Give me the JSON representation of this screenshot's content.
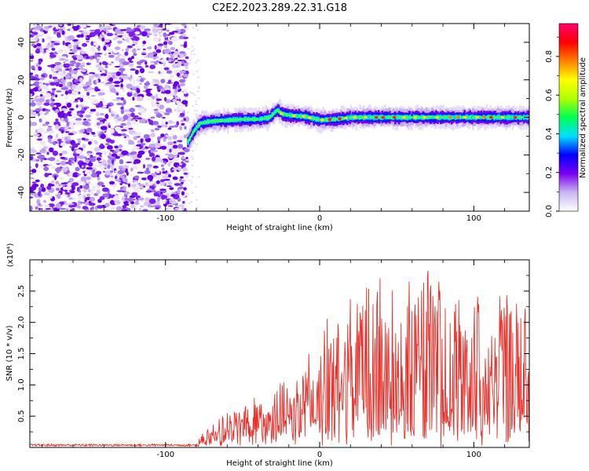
{
  "title": "C2E2.2023.289.22.31.G18",
  "chart_data": [
    {
      "type": "heatmap",
      "xlabel": "Height of straight line (km)",
      "ylabel": "Frequency (Hz)",
      "xlim": [
        -188,
        136
      ],
      "ylim": [
        -50,
        50
      ],
      "xticks": [
        -100,
        0,
        100
      ],
      "yticks": [
        -40,
        -20,
        0,
        20,
        40
      ],
      "noise_region_x": [
        -188,
        -86
      ],
      "ridge": [
        {
          "x": -86,
          "y": -13
        },
        {
          "x": -82,
          "y": -7
        },
        {
          "x": -78,
          "y": -3
        },
        {
          "x": -70,
          "y": -2
        },
        {
          "x": -60,
          "y": -1.5
        },
        {
          "x": -50,
          "y": -1
        },
        {
          "x": -40,
          "y": -1
        },
        {
          "x": -33,
          "y": 0
        },
        {
          "x": -28,
          "y": 4
        },
        {
          "x": -25,
          "y": 2
        },
        {
          "x": -20,
          "y": 1
        },
        {
          "x": -10,
          "y": 0.5
        },
        {
          "x": 0,
          "y": -1.5
        },
        {
          "x": 10,
          "y": -1
        },
        {
          "x": 20,
          "y": 0
        },
        {
          "x": 40,
          "y": 0
        },
        {
          "x": 60,
          "y": 0
        },
        {
          "x": 80,
          "y": 0
        },
        {
          "x": 100,
          "y": 0
        },
        {
          "x": 120,
          "y": 0
        },
        {
          "x": 136,
          "y": 0
        }
      ],
      "colorbar": {
        "label": "Normalized spectral amplitude",
        "range": [
          0,
          0.97
        ],
        "ticks": [
          0.0,
          0.2,
          0.4,
          0.6,
          0.8
        ],
        "tick_labels": [
          "0.0",
          "0.2",
          "0.4",
          "0.6",
          "0.8"
        ],
        "colors": [
          "#ffffff",
          "#c9b6f2",
          "#7a00f0",
          "#0000ff",
          "#00e0ff",
          "#00ff50",
          "#b0ff00",
          "#ffff00",
          "#ff8000",
          "#ff0000",
          "#ff0070"
        ]
      }
    },
    {
      "type": "line",
      "xlabel": "Height of straight line (km)",
      "ylabel": "SNR (10 * v/v)",
      "y_multiplier_label": "(x10⁴)",
      "xlim": [
        -188,
        136
      ],
      "ylim": [
        0,
        3.0
      ],
      "xticks": [
        -100,
        0,
        100
      ],
      "yticks": [
        0.5,
        1.0,
        1.5,
        2.0,
        2.5
      ],
      "ytick_labels": [
        "0.5",
        "1.0",
        "1.5",
        "2.0",
        "2.5"
      ],
      "line_color": "#e8302a",
      "envelope": [
        {
          "x": -188,
          "y": 0.05
        },
        {
          "x": -90,
          "y": 0.05
        },
        {
          "x": -80,
          "y": 0.08
        },
        {
          "x": -76,
          "y": 0.2
        },
        {
          "x": -70,
          "y": 0.35
        },
        {
          "x": -60,
          "y": 0.55
        },
        {
          "x": -50,
          "y": 0.75
        },
        {
          "x": -40,
          "y": 0.95
        },
        {
          "x": -30,
          "y": 0.9
        },
        {
          "x": -20,
          "y": 1.0
        },
        {
          "x": -10,
          "y": 1.3
        },
        {
          "x": 0,
          "y": 2.0
        },
        {
          "x": 10,
          "y": 1.9
        },
        {
          "x": 20,
          "y": 2.4
        },
        {
          "x": 30,
          "y": 2.6
        },
        {
          "x": 40,
          "y": 2.7
        },
        {
          "x": 50,
          "y": 2.55
        },
        {
          "x": 60,
          "y": 2.5
        },
        {
          "x": 70,
          "y": 2.9
        },
        {
          "x": 80,
          "y": 2.55
        },
        {
          "x": 90,
          "y": 2.4
        },
        {
          "x": 100,
          "y": 2.5
        },
        {
          "x": 110,
          "y": 2.2
        },
        {
          "x": 120,
          "y": 2.6
        },
        {
          "x": 130,
          "y": 2.2
        },
        {
          "x": 136,
          "y": 2.4
        }
      ],
      "floor": [
        {
          "x": -188,
          "y": 0.02
        },
        {
          "x": -80,
          "y": 0.02
        },
        {
          "x": -70,
          "y": 0.1
        },
        {
          "x": -40,
          "y": 0.2
        },
        {
          "x": -10,
          "y": 0.3
        },
        {
          "x": 20,
          "y": 0.4
        },
        {
          "x": 136,
          "y": 0.4
        }
      ]
    }
  ]
}
